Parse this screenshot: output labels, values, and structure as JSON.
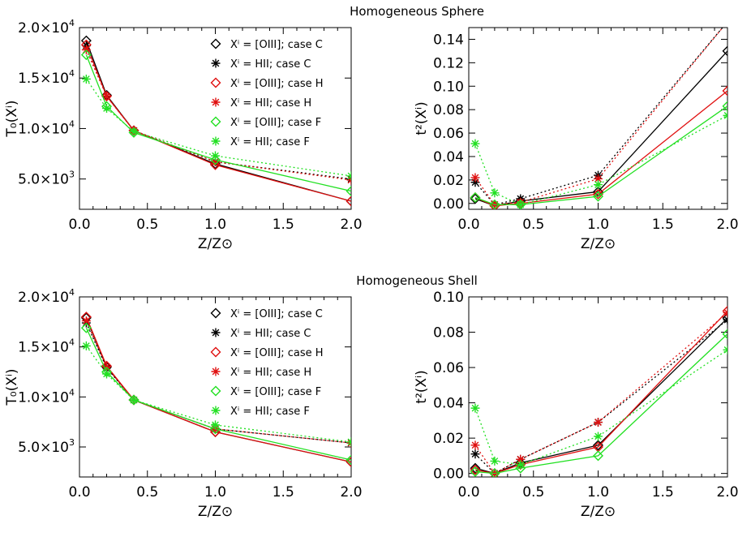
{
  "titles": [
    "Homogeneous Sphere",
    "Homogeneous Shell"
  ],
  "colors": {
    "case_C": "#000000",
    "case_H": "#e01010",
    "case_F": "#22e022"
  },
  "legend": [
    {
      "text": "Xⁱ = [OIII]; case C",
      "color": "#000000",
      "marker": "diamond"
    },
    {
      "text": "Xⁱ = HII;   case C",
      "color": "#000000",
      "marker": "asterisk"
    },
    {
      "text": "Xⁱ = [OIII]; case H",
      "color": "#e01010",
      "marker": "diamond"
    },
    {
      "text": "Xⁱ = HII;   case H",
      "color": "#e01010",
      "marker": "asterisk"
    },
    {
      "text": "Xⁱ = [OIII]; case F",
      "color": "#22e022",
      "marker": "diamond"
    },
    {
      "text": "Xⁱ = HII;   case F",
      "color": "#22e022",
      "marker": "asterisk"
    }
  ],
  "chart_data": [
    {
      "type": "line",
      "group": "Homogeneous Sphere",
      "xlabel": "Z/Z⊙",
      "ylabel": "T₀(Xⁱ)",
      "xlim": [
        0,
        2.0
      ],
      "ylim": [
        2000,
        20000
      ],
      "xticks": [
        "0.0",
        "0.5",
        "1.0",
        "1.5",
        "2.0"
      ],
      "yticks": [
        {
          "value": 5000,
          "mant": "5.0×10",
          "exp": "3"
        },
        {
          "value": 10000,
          "mant": "1.0×10",
          "exp": "4"
        },
        {
          "value": 15000,
          "mant": "1.5×10",
          "exp": "4"
        },
        {
          "value": 20000,
          "mant": "2.0×10",
          "exp": "4"
        }
      ],
      "legend_position": "top-right",
      "x": [
        0.05,
        0.2,
        0.4,
        1.0,
        2.0
      ],
      "series": [
        {
          "name": "Xⁱ = [OIII]; case C",
          "color": "#000000",
          "marker": "diamond",
          "dash": false,
          "values": [
            18700,
            13300,
            9800,
            6500,
            2800
          ]
        },
        {
          "name": "Xⁱ = HII;   case C",
          "color": "#000000",
          "marker": "asterisk",
          "dash": true,
          "values": [
            18200,
            13200,
            9800,
            6700,
            5000
          ]
        },
        {
          "name": "Xⁱ = [OIII]; case H",
          "color": "#e01010",
          "marker": "diamond",
          "dash": false,
          "values": [
            18300,
            13200,
            9800,
            6400,
            2800
          ]
        },
        {
          "name": "Xⁱ = HII;   case H",
          "color": "#e01010",
          "marker": "asterisk",
          "dash": true,
          "values": [
            17800,
            13200,
            9800,
            6700,
            4900
          ]
        },
        {
          "name": "Xⁱ = [OIII]; case F",
          "color": "#22e022",
          "marker": "diamond",
          "dash": false,
          "values": [
            17300,
            12200,
            9600,
            6900,
            3800
          ]
        },
        {
          "name": "Xⁱ = HII;   case F",
          "color": "#22e022",
          "marker": "asterisk",
          "dash": true,
          "values": [
            14900,
            12000,
            9700,
            7300,
            5300
          ]
        }
      ]
    },
    {
      "type": "line",
      "group": "Homogeneous Sphere",
      "xlabel": "Z/Z⊙",
      "ylabel": "t²(Xⁱ)",
      "xlim": [
        0,
        2.0
      ],
      "ylim": [
        -0.005,
        0.15
      ],
      "xticks": [
        "0.0",
        "0.5",
        "1.0",
        "1.5",
        "2.0"
      ],
      "yticks": [
        {
          "value": 0.0,
          "mant": "0.00",
          "exp": ""
        },
        {
          "value": 0.02,
          "mant": "0.02",
          "exp": ""
        },
        {
          "value": 0.04,
          "mant": "0.04",
          "exp": ""
        },
        {
          "value": 0.06,
          "mant": "0.06",
          "exp": ""
        },
        {
          "value": 0.08,
          "mant": "0.08",
          "exp": ""
        },
        {
          "value": 0.1,
          "mant": "0.10",
          "exp": ""
        },
        {
          "value": 0.12,
          "mant": "0.12",
          "exp": ""
        },
        {
          "value": 0.14,
          "mant": "0.14",
          "exp": ""
        }
      ],
      "x": [
        0.05,
        0.2,
        0.4,
        1.0,
        2.0
      ],
      "series": [
        {
          "name": "Xⁱ = [OIII]; case C",
          "color": "#000000",
          "marker": "diamond",
          "dash": false,
          "values": [
            0.004,
            -0.002,
            0.002,
            0.01,
            0.13
          ]
        },
        {
          "name": "Xⁱ = HII;   case C",
          "color": "#000000",
          "marker": "asterisk",
          "dash": true,
          "values": [
            0.018,
            -0.001,
            0.004,
            0.024,
            0.155
          ]
        },
        {
          "name": "Xⁱ = [OIII]; case H",
          "color": "#e01010",
          "marker": "diamond",
          "dash": false,
          "values": [
            0.005,
            -0.002,
            0.0,
            0.008,
            0.096
          ]
        },
        {
          "name": "Xⁱ = HII;   case H",
          "color": "#e01010",
          "marker": "asterisk",
          "dash": true,
          "values": [
            0.022,
            -0.001,
            0.001,
            0.021,
            0.155
          ]
        },
        {
          "name": "Xⁱ = [OIII]; case F",
          "color": "#22e022",
          "marker": "diamond",
          "dash": false,
          "values": [
            0.005,
            -0.001,
            -0.001,
            0.006,
            0.083
          ]
        },
        {
          "name": "Xⁱ = HII;   case F",
          "color": "#22e022",
          "marker": "asterisk",
          "dash": true,
          "values": [
            0.051,
            0.009,
            -0.001,
            0.016,
            0.075
          ]
        }
      ]
    },
    {
      "type": "line",
      "group": "Homogeneous Shell",
      "xlabel": "Z/Z⊙",
      "ylabel": "T₀(Xⁱ)",
      "xlim": [
        0,
        2.0
      ],
      "ylim": [
        2000,
        20000
      ],
      "xticks": [
        "0.0",
        "0.5",
        "1.0",
        "1.5",
        "2.0"
      ],
      "yticks": [
        {
          "value": 5000,
          "mant": "5.0×10",
          "exp": "3"
        },
        {
          "value": 10000,
          "mant": "1.0×10",
          "exp": "4"
        },
        {
          "value": 15000,
          "mant": "1.5×10",
          "exp": "4"
        },
        {
          "value": 20000,
          "mant": "2.0×10",
          "exp": "4"
        }
      ],
      "legend_position": "top-right",
      "x": [
        0.05,
        0.2,
        0.4,
        1.0,
        2.0
      ],
      "series": [
        {
          "name": "Xⁱ = [OIII]; case C",
          "color": "#000000",
          "marker": "diamond",
          "dash": false,
          "values": [
            17900,
            13000,
            9700,
            6500,
            3500
          ]
        },
        {
          "name": "Xⁱ = HII;   case C",
          "color": "#000000",
          "marker": "asterisk",
          "dash": true,
          "values": [
            17400,
            12900,
            9700,
            6800,
            5400
          ]
        },
        {
          "name": "Xⁱ = [OIII]; case H",
          "color": "#e01010",
          "marker": "diamond",
          "dash": false,
          "values": [
            18000,
            13100,
            9700,
            6500,
            3500
          ]
        },
        {
          "name": "Xⁱ = HII;   case H",
          "color": "#e01010",
          "marker": "asterisk",
          "dash": true,
          "values": [
            17600,
            13000,
            9700,
            6800,
            5400
          ]
        },
        {
          "name": "Xⁱ = [OIII]; case F",
          "color": "#22e022",
          "marker": "diamond",
          "dash": false,
          "values": [
            16900,
            12500,
            9700,
            6800,
            3700
          ]
        },
        {
          "name": "Xⁱ = HII;   case F",
          "color": "#22e022",
          "marker": "asterisk",
          "dash": true,
          "values": [
            15100,
            12300,
            9700,
            7200,
            5500
          ]
        }
      ]
    },
    {
      "type": "line",
      "group": "Homogeneous Shell",
      "xlabel": "Z/Z⊙",
      "ylabel": "t²(Xⁱ)",
      "xlim": [
        0,
        2.0
      ],
      "ylim": [
        -0.002,
        0.1
      ],
      "xticks": [
        "0.0",
        "0.5",
        "1.0",
        "1.5",
        "2.0"
      ],
      "yticks": [
        {
          "value": 0.0,
          "mant": "0.00",
          "exp": ""
        },
        {
          "value": 0.02,
          "mant": "0.02",
          "exp": ""
        },
        {
          "value": 0.04,
          "mant": "0.04",
          "exp": ""
        },
        {
          "value": 0.06,
          "mant": "0.06",
          "exp": ""
        },
        {
          "value": 0.08,
          "mant": "0.08",
          "exp": ""
        },
        {
          "value": 0.1,
          "mant": "0.10",
          "exp": ""
        }
      ],
      "x": [
        0.05,
        0.2,
        0.4,
        1.0,
        2.0
      ],
      "series": [
        {
          "name": "Xⁱ = [OIII]; case C",
          "color": "#000000",
          "marker": "diamond",
          "dash": false,
          "values": [
            0.003,
            0.0,
            0.006,
            0.016,
            0.088
          ]
        },
        {
          "name": "Xⁱ = HII;   case C",
          "color": "#000000",
          "marker": "asterisk",
          "dash": true,
          "values": [
            0.011,
            0.0,
            0.008,
            0.029,
            0.087
          ]
        },
        {
          "name": "Xⁱ = [OIII]; case H",
          "color": "#e01010",
          "marker": "diamond",
          "dash": false,
          "values": [
            0.002,
            0.0,
            0.005,
            0.015,
            0.092
          ]
        },
        {
          "name": "Xⁱ = HII;   case H",
          "color": "#e01010",
          "marker": "asterisk",
          "dash": true,
          "values": [
            0.016,
            0.0,
            0.008,
            0.029,
            0.091
          ]
        },
        {
          "name": "Xⁱ = [OIII]; case F",
          "color": "#22e022",
          "marker": "diamond",
          "dash": false,
          "values": [
            0.001,
            0.0,
            0.003,
            0.01,
            0.079
          ]
        },
        {
          "name": "Xⁱ = HII;   case F",
          "color": "#22e022",
          "marker": "asterisk",
          "dash": true,
          "values": [
            0.037,
            0.007,
            0.005,
            0.021,
            0.07
          ]
        }
      ]
    }
  ]
}
